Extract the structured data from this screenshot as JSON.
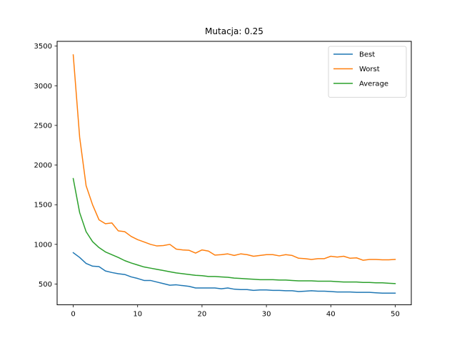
{
  "chart_data": {
    "type": "line",
    "title": "Mutacja: 0.25",
    "xlabel": "",
    "ylabel": "",
    "xlim": [
      -2.5,
      52.5
    ],
    "ylim": [
      238,
      3560
    ],
    "xticks": [
      0,
      10,
      20,
      30,
      40,
      50
    ],
    "yticks": [
      500,
      1000,
      1500,
      2000,
      2500,
      3000,
      3500
    ],
    "grid": false,
    "legend_position": "top-right",
    "x": [
      0,
      1,
      2,
      3,
      4,
      5,
      6,
      7,
      8,
      9,
      10,
      11,
      12,
      13,
      14,
      15,
      16,
      17,
      18,
      19,
      20,
      21,
      22,
      23,
      24,
      25,
      26,
      27,
      28,
      29,
      30,
      31,
      32,
      33,
      34,
      35,
      36,
      37,
      38,
      39,
      40,
      41,
      42,
      43,
      44,
      45,
      46,
      47,
      48,
      49,
      50
    ],
    "series": [
      {
        "name": "Best",
        "color": "#1f77b4",
        "values": [
          895,
          835,
          760,
          725,
          720,
          665,
          645,
          630,
          620,
          590,
          570,
          545,
          545,
          525,
          505,
          485,
          490,
          480,
          470,
          450,
          450,
          450,
          450,
          440,
          450,
          435,
          430,
          430,
          420,
          425,
          425,
          420,
          420,
          415,
          415,
          405,
          410,
          415,
          410,
          410,
          405,
          400,
          400,
          400,
          395,
          395,
          395,
          390,
          385,
          385,
          385
        ]
      },
      {
        "name": "Worst",
        "color": "#ff7f0e",
        "values": [
          3390,
          2350,
          1740,
          1500,
          1310,
          1260,
          1270,
          1170,
          1160,
          1100,
          1060,
          1030,
          1000,
          980,
          985,
          1000,
          940,
          930,
          925,
          890,
          930,
          915,
          865,
          870,
          880,
          860,
          880,
          870,
          850,
          860,
          870,
          870,
          855,
          870,
          860,
          825,
          820,
          810,
          820,
          820,
          850,
          840,
          850,
          825,
          830,
          800,
          810,
          810,
          805,
          805,
          810
        ]
      },
      {
        "name": "Average",
        "color": "#2ca02c",
        "values": [
          1830,
          1400,
          1160,
          1035,
          960,
          905,
          870,
          835,
          795,
          765,
          740,
          715,
          700,
          685,
          670,
          655,
          640,
          630,
          620,
          610,
          605,
          595,
          595,
          590,
          585,
          575,
          570,
          565,
          560,
          555,
          555,
          555,
          550,
          550,
          545,
          540,
          540,
          540,
          535,
          535,
          535,
          530,
          525,
          525,
          525,
          520,
          520,
          515,
          515,
          510,
          505
        ]
      }
    ]
  }
}
